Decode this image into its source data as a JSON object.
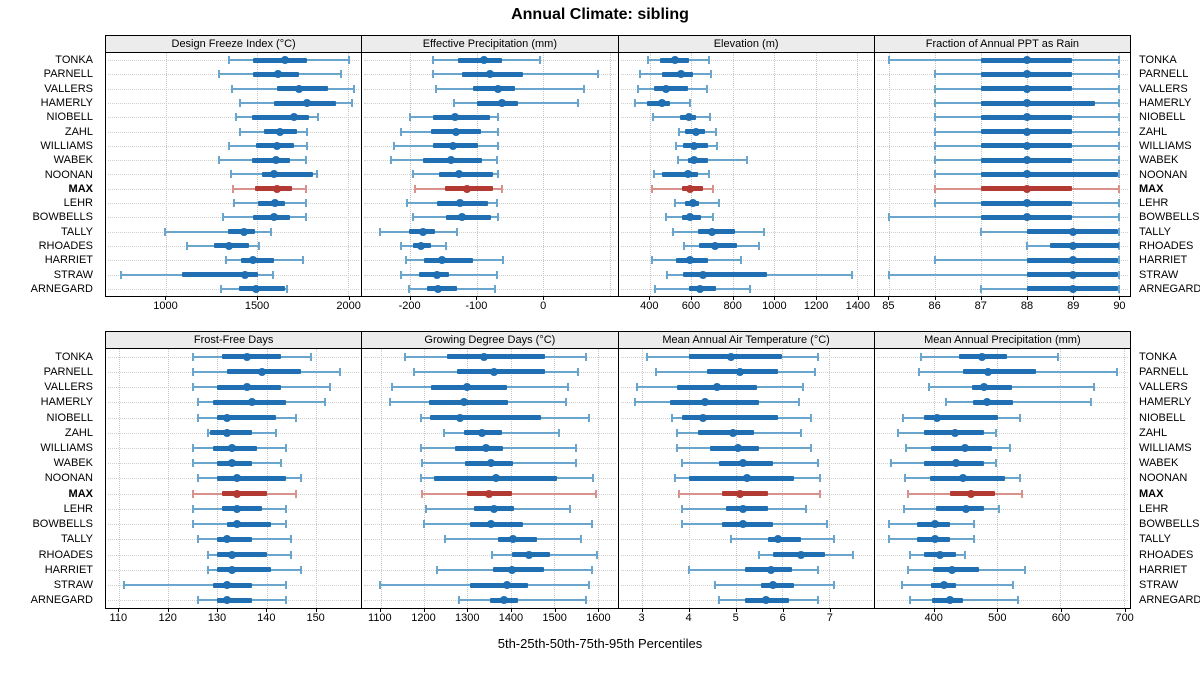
{
  "title": "Annual Climate: sibling",
  "caption": "5th-25th-50th-75th-95th Percentiles",
  "colors": {
    "blue": "#1f6fb2",
    "blue_light": "#69a5cd",
    "red": "#b23a32",
    "red_light": "#d9928b",
    "strip_bg": "#ececec",
    "grid": "#c6c6c6",
    "panel_border": "#000000"
  },
  "chart_data": {
    "type": "percentile-dotplot",
    "note": "Each row shows 5th-25th-50th-75th-95th percentiles: thin whisker 5th-95th with end caps, thick bar 25th-75th, dot at median",
    "categories": [
      "TONKA",
      "PARNELL",
      "VALLERS",
      "HAMERLY",
      "NIOBELL",
      "ZAHL",
      "WILLIAMS",
      "WABEK",
      "NOONAN",
      "MAX",
      "LEHR",
      "BOWBELLS",
      "TALLY",
      "RHOADES",
      "HARRIET",
      "STRAW",
      "ARNEGARD"
    ],
    "highlight": "MAX",
    "legend_position": "none",
    "grid": "dotted",
    "panels": [
      {
        "title": "Design Freeze Index (°C)",
        "xlim": [
          670,
          2070
        ],
        "ticks": [
          1000,
          1500,
          2000
        ],
        "values": [
          [
            1345,
            1475,
            1650,
            1775,
            2005
          ],
          [
            1290,
            1475,
            1615,
            1730,
            1960
          ],
          [
            1360,
            1610,
            1730,
            1885,
            2030
          ],
          [
            1405,
            1590,
            1775,
            1930,
            2020
          ],
          [
            1385,
            1470,
            1700,
            1785,
            1835
          ],
          [
            1405,
            1535,
            1625,
            1720,
            1775
          ],
          [
            1345,
            1495,
            1610,
            1700,
            1775
          ],
          [
            1290,
            1470,
            1600,
            1680,
            1765
          ],
          [
            1355,
            1525,
            1590,
            1805,
            1830
          ],
          [
            1365,
            1485,
            1610,
            1690,
            1765
          ],
          [
            1370,
            1505,
            1595,
            1650,
            1765
          ],
          [
            1310,
            1475,
            1590,
            1680,
            1765
          ],
          [
            995,
            1340,
            1425,
            1485,
            1575
          ],
          [
            1115,
            1260,
            1345,
            1455,
            1510
          ],
          [
            1330,
            1410,
            1475,
            1590,
            1750
          ],
          [
            755,
            1085,
            1435,
            1505,
            1585
          ],
          [
            1300,
            1400,
            1490,
            1650,
            1665
          ]
        ]
      },
      {
        "title": "Effective Precipitation (mm)",
        "xlim": [
          -272,
          112
        ],
        "ticks": [
          -200,
          -100,
          0
        ],
        "gridlines": [
          -200,
          -100,
          0,
          100
        ],
        "values": [
          [
            -166,
            -128,
            -89,
            -62,
            -5
          ],
          [
            -165,
            -122,
            -80,
            -30,
            82
          ],
          [
            -161,
            -105,
            -68,
            -42,
            62
          ],
          [
            -134,
            -100,
            -62,
            -38,
            53
          ],
          [
            -200,
            -165,
            -133,
            -80,
            -68
          ],
          [
            -214,
            -168,
            -131,
            -93,
            -68
          ],
          [
            -224,
            -165,
            -135,
            -98,
            -68
          ],
          [
            -228,
            -180,
            -139,
            -92,
            -70
          ],
          [
            -195,
            -156,
            -127,
            -75,
            -68
          ],
          [
            -193,
            -148,
            -114,
            -75,
            -62
          ],
          [
            -205,
            -160,
            -125,
            -83,
            -70
          ],
          [
            -196,
            -146,
            -122,
            -78,
            -68
          ],
          [
            -246,
            -201,
            -180,
            -163,
            -129
          ],
          [
            -213,
            -195,
            -183,
            -169,
            -146
          ],
          [
            -206,
            -179,
            -152,
            -106,
            -61
          ],
          [
            -213,
            -186,
            -159,
            -141,
            -70
          ],
          [
            -201,
            -175,
            -158,
            -130,
            -73
          ]
        ]
      },
      {
        "title": "Elevation (m)",
        "xlim": [
          250,
          1480
        ],
        "ticks": [
          400,
          600,
          800,
          1000,
          1200,
          1400
        ],
        "values": [
          [
            390,
            450,
            520,
            590,
            685
          ],
          [
            355,
            460,
            550,
            610,
            695
          ],
          [
            345,
            420,
            480,
            585,
            675
          ],
          [
            330,
            385,
            460,
            500,
            595
          ],
          [
            415,
            545,
            590,
            625,
            690
          ],
          [
            540,
            570,
            625,
            665,
            720
          ],
          [
            525,
            560,
            615,
            680,
            725
          ],
          [
            535,
            585,
            615,
            680,
            870
          ],
          [
            420,
            460,
            585,
            635,
            685
          ],
          [
            410,
            555,
            595,
            655,
            705
          ],
          [
            520,
            570,
            610,
            640,
            735
          ],
          [
            480,
            555,
            595,
            650,
            705
          ],
          [
            515,
            635,
            700,
            810,
            950
          ],
          [
            565,
            640,
            715,
            820,
            925
          ],
          [
            410,
            525,
            595,
            680,
            840
          ],
          [
            485,
            560,
            655,
            965,
            1375
          ],
          [
            425,
            590,
            645,
            720,
            885
          ]
        ]
      },
      {
        "title": "Fraction of Annual PPT as Rain",
        "xlim": [
          84.7,
          90.25
        ],
        "ticks": [
          85,
          86,
          87,
          88,
          89,
          90
        ],
        "values": [
          [
            85,
            87,
            88,
            89,
            90
          ],
          [
            86,
            87,
            88,
            89,
            90
          ],
          [
            86,
            87,
            88,
            89,
            90
          ],
          [
            86,
            87,
            88,
            89.5,
            90
          ],
          [
            86,
            87,
            88,
            89,
            90
          ],
          [
            86,
            87,
            88,
            89,
            90
          ],
          [
            86,
            87,
            88,
            89,
            90
          ],
          [
            86,
            87,
            88,
            89,
            90
          ],
          [
            86,
            87,
            88,
            90,
            90
          ],
          [
            86,
            87,
            88,
            89,
            90
          ],
          [
            86,
            87,
            88,
            89,
            90
          ],
          [
            85,
            87,
            88,
            89,
            90
          ],
          [
            87,
            88,
            89,
            90,
            90
          ],
          [
            88,
            88.5,
            89,
            90,
            90
          ],
          [
            86,
            88,
            89,
            90,
            90
          ],
          [
            85,
            88,
            89,
            90,
            90
          ],
          [
            87,
            88,
            89,
            90,
            90
          ]
        ]
      },
      {
        "title": "Frost-Free Days",
        "xlim": [
          107.3,
          159.3
        ],
        "ticks": [
          110,
          120,
          130,
          140,
          150
        ],
        "values": [
          [
            125,
            131,
            136,
            143,
            149
          ],
          [
            125,
            132,
            139,
            147,
            155
          ],
          [
            125,
            130,
            136,
            143,
            153
          ],
          [
            126,
            129,
            137,
            144,
            152
          ],
          [
            126,
            130,
            132,
            142,
            146
          ],
          [
            128,
            128.5,
            132,
            137,
            142
          ],
          [
            125,
            129,
            133,
            138,
            144
          ],
          [
            125,
            130,
            133,
            137,
            143
          ],
          [
            126,
            130,
            134,
            144,
            147
          ],
          [
            125,
            131,
            134,
            140,
            146
          ],
          [
            125,
            131,
            134,
            139,
            144
          ],
          [
            125,
            132,
            134,
            141,
            144
          ],
          [
            126,
            130,
            132,
            137,
            145
          ],
          [
            128,
            130,
            133,
            140,
            145
          ],
          [
            128,
            130,
            133,
            141,
            147
          ],
          [
            111,
            129,
            132,
            137,
            144
          ],
          [
            126,
            130,
            132,
            137,
            144
          ]
        ]
      },
      {
        "title": "Growing Degree Days (°C)",
        "xlim": [
          1058,
          1645
        ],
        "ticks": [
          1100,
          1200,
          1300,
          1400,
          1500,
          1600
        ],
        "values": [
          [
            1157,
            1254,
            1337,
            1478,
            1572
          ],
          [
            1176,
            1277,
            1360,
            1478,
            1554
          ],
          [
            1127,
            1215,
            1300,
            1390,
            1531
          ],
          [
            1121,
            1211,
            1291,
            1394,
            1527
          ],
          [
            1192,
            1213,
            1282,
            1468,
            1579
          ],
          [
            1245,
            1291,
            1333,
            1379,
            1511
          ],
          [
            1192,
            1272,
            1343,
            1382,
            1550
          ],
          [
            1195,
            1295,
            1353,
            1405,
            1550
          ],
          [
            1194,
            1224,
            1366,
            1506,
            1588
          ],
          [
            1195,
            1298,
            1350,
            1402,
            1596
          ],
          [
            1205,
            1315,
            1360,
            1407,
            1535
          ],
          [
            1201,
            1305,
            1354,
            1428,
            1586
          ],
          [
            1249,
            1371,
            1404,
            1460,
            1562
          ],
          [
            1356,
            1402,
            1442,
            1489,
            1598
          ],
          [
            1230,
            1358,
            1402,
            1476,
            1586
          ],
          [
            1098,
            1306,
            1392,
            1440,
            1579
          ],
          [
            1281,
            1352,
            1384,
            1417,
            1573
          ]
        ]
      },
      {
        "title": "Mean Annual Air Temperature (°C)",
        "xlim": [
          2.5,
          7.95
        ],
        "ticks": [
          3,
          4,
          5,
          6,
          7
        ],
        "values": [
          [
            3.1,
            4.0,
            4.9,
            6.0,
            6.75
          ],
          [
            3.3,
            4.4,
            5.1,
            5.9,
            6.7
          ],
          [
            2.9,
            3.75,
            4.6,
            5.45,
            6.45
          ],
          [
            2.85,
            3.6,
            4.35,
            5.5,
            6.35
          ],
          [
            3.65,
            3.85,
            4.3,
            5.9,
            6.6
          ],
          [
            3.75,
            4.2,
            4.95,
            5.4,
            6.4
          ],
          [
            3.75,
            4.45,
            5.05,
            5.5,
            6.6
          ],
          [
            3.85,
            4.65,
            5.15,
            5.8,
            6.75
          ],
          [
            3.7,
            4.0,
            5.25,
            6.25,
            6.8
          ],
          [
            3.8,
            4.7,
            5.1,
            5.7,
            6.8
          ],
          [
            3.85,
            4.8,
            5.15,
            5.7,
            6.5
          ],
          [
            3.85,
            4.7,
            5.15,
            5.8,
            6.95
          ],
          [
            4.9,
            5.7,
            5.9,
            6.4,
            7.1
          ],
          [
            5.5,
            5.8,
            6.4,
            6.9,
            7.5
          ],
          [
            4.0,
            5.2,
            5.75,
            6.2,
            6.75
          ],
          [
            4.55,
            5.55,
            5.8,
            6.25,
            7.1
          ],
          [
            4.65,
            5.2,
            5.65,
            6.15,
            6.75
          ]
        ]
      },
      {
        "title": "Mean Annual Precipitation (mm)",
        "xlim": [
          307,
          710
        ],
        "ticks": [
          400,
          500,
          600,
          700
        ],
        "values": [
          [
            380,
            440,
            477,
            516,
            597
          ],
          [
            377,
            447,
            486,
            561,
            689
          ],
          [
            393,
            460,
            480,
            523,
            653
          ],
          [
            420,
            462,
            484,
            525,
            649
          ],
          [
            351,
            385,
            405,
            501,
            536
          ],
          [
            344,
            385,
            434,
            479,
            499
          ],
          [
            357,
            396,
            450,
            492,
            520
          ],
          [
            332,
            385,
            436,
            479,
            499
          ],
          [
            355,
            395,
            447,
            512,
            536
          ],
          [
            360,
            426,
            459,
            497,
            539
          ],
          [
            353,
            404,
            451,
            480,
            503
          ],
          [
            329,
            374,
            402,
            426,
            463
          ],
          [
            329,
            374,
            402,
            426,
            463
          ],
          [
            363,
            384,
            410,
            435,
            449
          ],
          [
            359,
            399,
            429,
            471,
            545
          ],
          [
            350,
            396,
            416,
            436,
            526
          ],
          [
            363,
            398,
            426,
            447,
            533
          ]
        ]
      }
    ]
  }
}
